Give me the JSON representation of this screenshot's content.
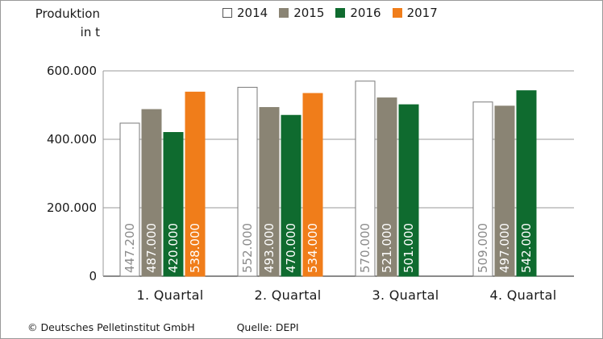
{
  "chart_data": {
    "type": "bar",
    "ylabel_lines": [
      "Produktion",
      "in t"
    ],
    "categories": [
      "1. Quartal",
      "2. Quartal",
      "3. Quartal",
      "4. Quartal"
    ],
    "series": [
      {
        "name": "2014",
        "color": "#ffffff",
        "stroke": "#7a7a7a",
        "text_color": "#8a8a8a",
        "values": [
          447200,
          552000,
          570000,
          509000
        ],
        "labels": [
          "447.200",
          "552.000",
          "570.000",
          "509.000"
        ]
      },
      {
        "name": "2015",
        "color": "#8a8474",
        "stroke": "#8a8474",
        "text_color": "#ffffff",
        "values": [
          487000,
          493000,
          521000,
          497000
        ],
        "labels": [
          "487.000",
          "493.000",
          "521.000",
          "497.000"
        ]
      },
      {
        "name": "2016",
        "color": "#0f6b2f",
        "stroke": "#0f6b2f",
        "text_color": "#ffffff",
        "values": [
          420000,
          470000,
          501000,
          542000
        ],
        "labels": [
          "420.000",
          "470.000",
          "501.000",
          "542.000"
        ]
      },
      {
        "name": "2017",
        "color": "#f07d1a",
        "stroke": "#f07d1a",
        "text_color": "#ffffff",
        "values": [
          538000,
          534000,
          null,
          null
        ],
        "labels": [
          "538.000",
          "534.000",
          null,
          null
        ]
      }
    ],
    "yticks": [
      {
        "value": 0,
        "label": "0"
      },
      {
        "value": 200000,
        "label": "200.000"
      },
      {
        "value": 400000,
        "label": "400.000"
      },
      {
        "value": 600000,
        "label": "600.000"
      }
    ],
    "ylim": [
      0,
      600000
    ],
    "grid": true,
    "legend_position": "top"
  },
  "footer": {
    "copyright": "© Deutsches Pelletinstitut GmbH",
    "source": "Quelle: DEPI"
  }
}
